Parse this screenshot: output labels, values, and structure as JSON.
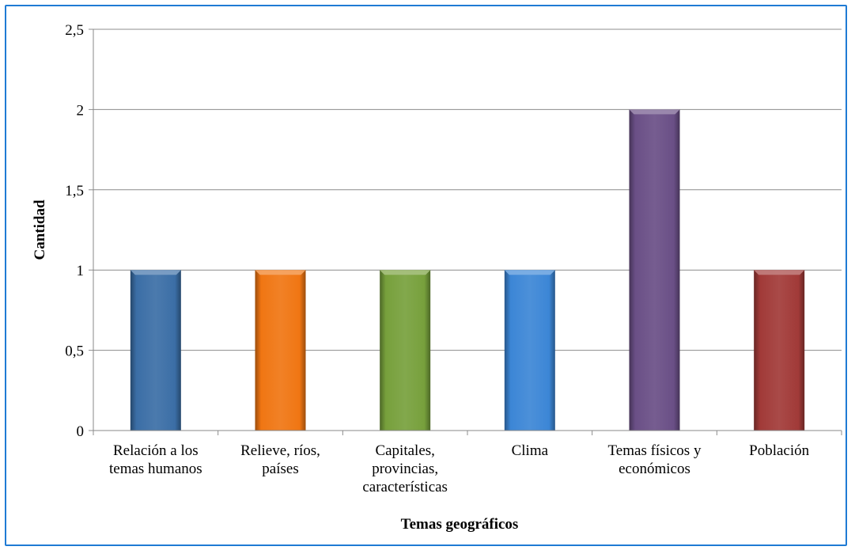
{
  "chart_data": {
    "type": "bar",
    "categories": [
      [
        "Relación a los",
        "temas humanos"
      ],
      [
        "Relieve, ríos,",
        "países"
      ],
      [
        "Capitales,",
        "provincias,",
        "características"
      ],
      [
        "Clima"
      ],
      [
        "Temas físicos y",
        "económicos"
      ],
      [
        "Población"
      ]
    ],
    "values": [
      1,
      1,
      1,
      1,
      2,
      1
    ],
    "colors": [
      "#3b6ea6",
      "#f07613",
      "#77a03c",
      "#3c86d6",
      "#6a4f86",
      "#a13a38"
    ],
    "xlabel": "Temas geográficos",
    "ylabel": "Cantidad",
    "ylim": [
      0,
      2.5
    ],
    "yticks": [
      "0",
      "0,5",
      "1",
      "1,5",
      "2",
      "2,5"
    ],
    "grid": true,
    "border_color": "#1f7bd4"
  }
}
